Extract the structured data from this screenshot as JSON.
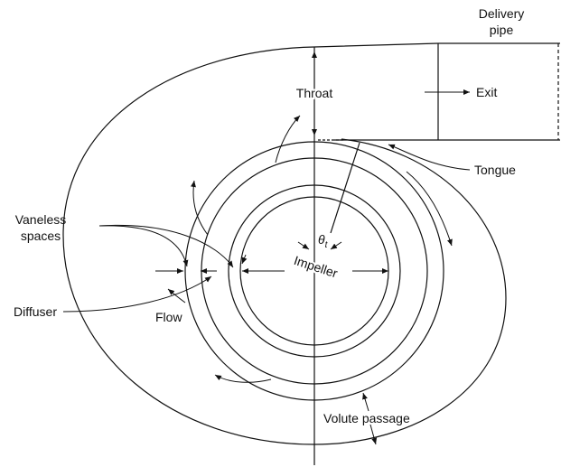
{
  "labels": {
    "delivery_pipe": [
      "Delivery",
      "pipe"
    ],
    "throat": "Throat",
    "exit": "Exit",
    "tongue": "Tongue",
    "vaneless_spaces": [
      "Vaneless",
      "spaces"
    ],
    "theta": {
      "base": "θ",
      "sub": "t"
    },
    "impeller": "Impeller",
    "diffuser": "Diffuser",
    "flow": "Flow",
    "volute_passage": "Volute passage"
  }
}
